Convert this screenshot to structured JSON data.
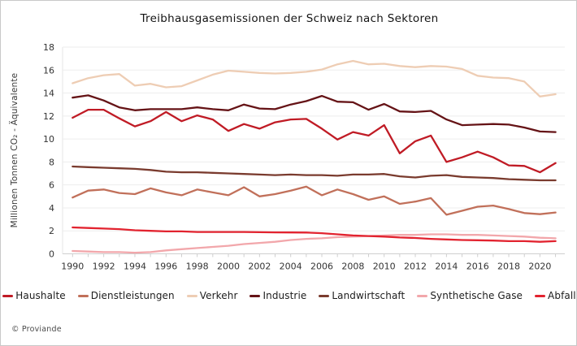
{
  "footer": {
    "copyright": "© Proviande"
  },
  "chart_data": {
    "type": "line",
    "title": "Treibhausgasemissionen der Schweiz nach Sektoren",
    "xlabel": "",
    "ylabel": "Millionen Tonnen CO₂ - Äquivalente",
    "ylim": [
      0,
      18
    ],
    "ytick_step": 2,
    "grid": "horizontal",
    "legend_position": "bottom",
    "background_color": "#ffffff",
    "grid_color": "#ededed",
    "axis_color": "#cfcfcf",
    "tick_text_color": "#333333",
    "x": [
      1990,
      1991,
      1992,
      1993,
      1994,
      1995,
      1996,
      1997,
      1998,
      1999,
      2000,
      2001,
      2002,
      2003,
      2004,
      2005,
      2006,
      2007,
      2008,
      2009,
      2010,
      2011,
      2012,
      2013,
      2014,
      2015,
      2016,
      2017,
      2018,
      2019,
      2020,
      2021
    ],
    "x_labeled_ticks": [
      1990,
      1992,
      1994,
      1996,
      1998,
      2000,
      2002,
      2004,
      2006,
      2008,
      2010,
      2012,
      2014,
      2016,
      2018,
      2020
    ],
    "series": [
      {
        "name": "Haushalte",
        "color": "#c01b25",
        "values": [
          11.85,
          12.55,
          12.55,
          11.8,
          11.1,
          11.55,
          12.35,
          11.55,
          12.05,
          11.7,
          10.7,
          11.3,
          10.9,
          11.45,
          11.7,
          11.75,
          10.9,
          9.95,
          10.6,
          10.3,
          11.2,
          8.75,
          9.8,
          10.3,
          8.0,
          8.4,
          8.9,
          8.4,
          7.7,
          7.65,
          7.1,
          7.9
        ]
      },
      {
        "name": "Dienstleistungen",
        "color": "#c1705a",
        "values": [
          4.9,
          5.5,
          5.6,
          5.3,
          5.2,
          5.7,
          5.35,
          5.1,
          5.6,
          5.35,
          5.1,
          5.8,
          5.0,
          5.2,
          5.5,
          5.85,
          5.1,
          5.6,
          5.2,
          4.7,
          5.0,
          4.35,
          4.55,
          4.85,
          3.4,
          3.75,
          4.1,
          4.2,
          3.9,
          3.55,
          3.45,
          3.6
        ]
      },
      {
        "name": "Verkehr",
        "color": "#eecdb4",
        "values": [
          14.85,
          15.3,
          15.55,
          15.65,
          14.65,
          14.8,
          14.5,
          14.6,
          15.1,
          15.6,
          15.95,
          15.85,
          15.75,
          15.7,
          15.75,
          15.85,
          16.05,
          16.5,
          16.8,
          16.5,
          16.55,
          16.35,
          16.25,
          16.35,
          16.3,
          16.1,
          15.5,
          15.35,
          15.3,
          15.0,
          13.7,
          13.9
        ]
      },
      {
        "name": "Industrie",
        "color": "#651316",
        "values": [
          13.6,
          13.8,
          13.35,
          12.75,
          12.5,
          12.6,
          12.6,
          12.6,
          12.75,
          12.6,
          12.5,
          13.0,
          12.65,
          12.6,
          13.0,
          13.3,
          13.75,
          13.25,
          13.2,
          12.55,
          13.05,
          12.4,
          12.35,
          12.45,
          11.7,
          11.2,
          11.25,
          11.3,
          11.25,
          11.0,
          10.65,
          10.6
        ]
      },
      {
        "name": "Landwirtschaft",
        "color": "#7a3b2e",
        "values": [
          7.6,
          7.55,
          7.5,
          7.45,
          7.4,
          7.3,
          7.15,
          7.1,
          7.1,
          7.05,
          7.0,
          6.95,
          6.9,
          6.85,
          6.9,
          6.85,
          6.85,
          6.8,
          6.9,
          6.9,
          6.95,
          6.75,
          6.65,
          6.8,
          6.85,
          6.7,
          6.65,
          6.6,
          6.5,
          6.45,
          6.4,
          6.4
        ]
      },
      {
        "name": "Synthetische Gase",
        "color": "#f2a7ab",
        "values": [
          0.25,
          0.2,
          0.15,
          0.15,
          0.1,
          0.15,
          0.3,
          0.4,
          0.5,
          0.6,
          0.7,
          0.85,
          0.95,
          1.05,
          1.2,
          1.3,
          1.35,
          1.45,
          1.5,
          1.55,
          1.6,
          1.65,
          1.65,
          1.7,
          1.7,
          1.65,
          1.65,
          1.6,
          1.55,
          1.5,
          1.4,
          1.35
        ]
      },
      {
        "name": "Abfall",
        "color": "#e2232f",
        "values": [
          2.3,
          2.25,
          2.2,
          2.15,
          2.05,
          2.0,
          1.95,
          1.95,
          1.9,
          1.9,
          1.9,
          1.9,
          1.88,
          1.87,
          1.86,
          1.85,
          1.8,
          1.7,
          1.6,
          1.55,
          1.5,
          1.42,
          1.38,
          1.3,
          1.25,
          1.2,
          1.18,
          1.15,
          1.1,
          1.1,
          1.05,
          1.1
        ]
      }
    ]
  }
}
